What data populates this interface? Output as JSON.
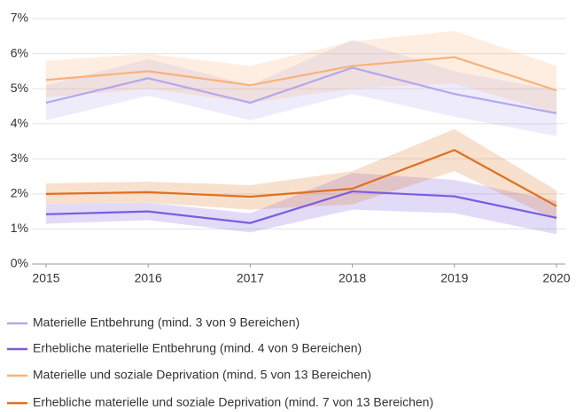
{
  "chart_data": {
    "type": "line",
    "x": [
      2015,
      2016,
      2017,
      2018,
      2019,
      2020
    ],
    "xlim": [
      2015,
      2020
    ],
    "xticks": [
      2015,
      2016,
      2017,
      2018,
      2019,
      2020
    ],
    "ylim": [
      0,
      7
    ],
    "yticks": [
      {
        "value": 0,
        "label": "0%"
      },
      {
        "value": 1,
        "label": "1%"
      },
      {
        "value": 2,
        "label": "2%"
      },
      {
        "value": 3,
        "label": "3%"
      },
      {
        "value": 4,
        "label": "4%"
      },
      {
        "value": 5,
        "label": "5%"
      },
      {
        "value": 6,
        "label": "6%"
      },
      {
        "value": 7,
        "label": "7%"
      }
    ],
    "grid": true,
    "legend": "bottom",
    "series": [
      {
        "name": "Materielle Entbehrung (mind. 3 von 9 Bereichen)",
        "color": "#b3a8ec",
        "values": [
          4.6,
          5.3,
          4.6,
          5.6,
          4.85,
          4.3
        ],
        "lower": [
          4.1,
          4.8,
          4.1,
          4.85,
          4.2,
          3.65
        ],
        "upper": [
          5.1,
          5.85,
          5.1,
          6.4,
          5.5,
          4.95
        ]
      },
      {
        "name": "Erhebliche materielle Entbehrung (mind. 4 von 9 Bereichen)",
        "color": "#7b5ce0",
        "values": [
          1.42,
          1.5,
          1.17,
          2.07,
          1.93,
          1.32
        ],
        "lower": [
          1.15,
          1.25,
          0.9,
          1.55,
          1.45,
          0.85
        ],
        "upper": [
          1.7,
          1.75,
          1.45,
          2.6,
          2.4,
          1.8
        ]
      },
      {
        "name": "Materielle und soziale Deprivation (mind. 5 von 13 Bereichen)",
        "color": "#f9b27a",
        "values": [
          5.25,
          5.5,
          5.1,
          5.65,
          5.9,
          4.95
        ],
        "lower": [
          4.75,
          5.0,
          4.6,
          5.0,
          5.15,
          4.3
        ],
        "upper": [
          5.8,
          6.0,
          5.65,
          6.35,
          6.65,
          5.65
        ]
      },
      {
        "name": "Erhebliche materielle und soziale Deprivation (mind. 7 von 13 Bereichen)",
        "color": "#e0701e",
        "values": [
          2.0,
          2.05,
          1.92,
          2.15,
          3.25,
          1.65
        ],
        "lower": [
          1.7,
          1.75,
          1.55,
          1.7,
          2.65,
          1.25
        ],
        "upper": [
          2.3,
          2.35,
          2.25,
          2.65,
          3.85,
          2.1
        ]
      }
    ]
  }
}
